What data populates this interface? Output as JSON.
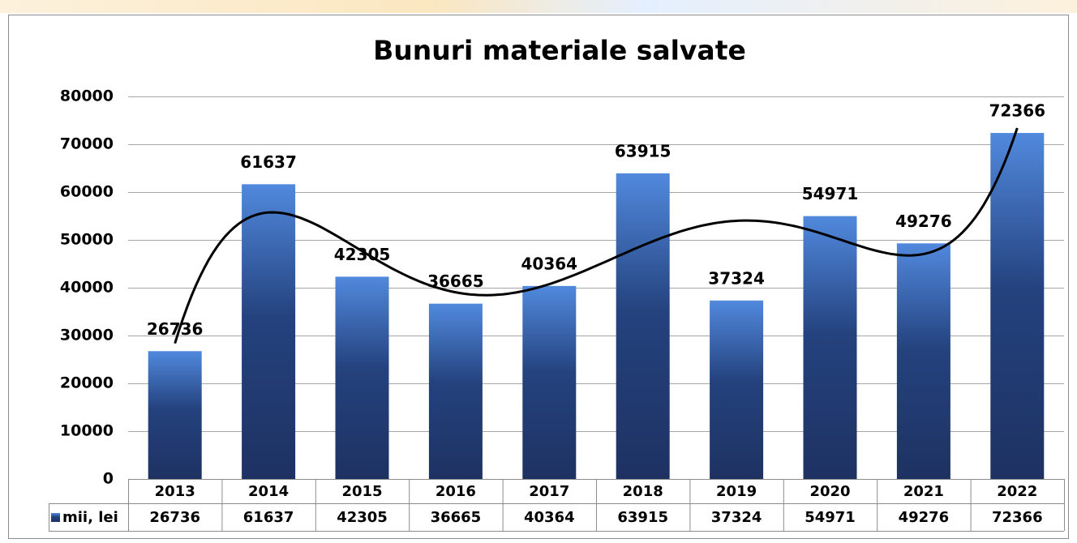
{
  "chart_data": {
    "type": "bar",
    "title": "Bunuri materiale salvate",
    "categories": [
      "2013",
      "2014",
      "2015",
      "2016",
      "2017",
      "2018",
      "2019",
      "2020",
      "2021",
      "2022"
    ],
    "series": [
      {
        "name": "mii, lei",
        "color": "#2a4a8c",
        "values": [
          26736,
          61637,
          42305,
          36665,
          40364,
          63915,
          37324,
          54971,
          49276,
          72366
        ]
      }
    ],
    "ylim": [
      0,
      80000
    ],
    "yticks": [
      0,
      10000,
      20000,
      30000,
      40000,
      50000,
      60000,
      70000,
      80000
    ],
    "grid": true,
    "data_table": true,
    "trendline": {
      "type": "polynomial",
      "order": 5,
      "color": "#000000"
    }
  }
}
